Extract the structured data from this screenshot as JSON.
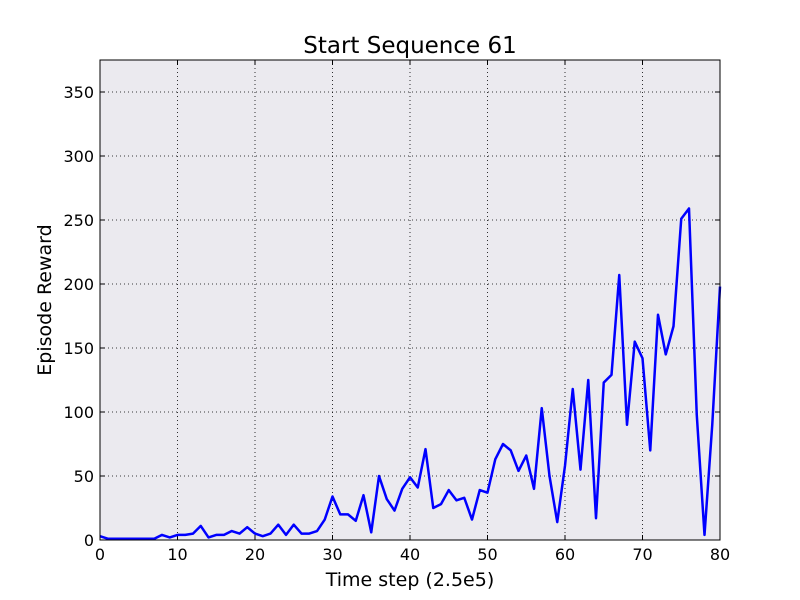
{
  "chart_data": {
    "type": "line",
    "title": "Start Sequence 61",
    "xlabel": "Time step (2.5e5)",
    "ylabel": "Episode Reward",
    "xlim": [
      0,
      80
    ],
    "ylim": [
      0,
      375
    ],
    "xticks": [
      0,
      10,
      20,
      30,
      40,
      50,
      60,
      70,
      80
    ],
    "yticks": [
      0,
      50,
      100,
      150,
      200,
      250,
      300,
      350
    ],
    "grid": true,
    "background_color": "#ebeaef",
    "series": [
      {
        "color": "#0000ff",
        "x": [
          0,
          1,
          2,
          3,
          4,
          5,
          6,
          7,
          8,
          9,
          10,
          11,
          12,
          13,
          14,
          15,
          16,
          17,
          18,
          19,
          20,
          21,
          22,
          23,
          24,
          25,
          26,
          27,
          28,
          29,
          30,
          31,
          32,
          33,
          34,
          35,
          36,
          37,
          38,
          39,
          40,
          41,
          42,
          43,
          44,
          45,
          46,
          47,
          48,
          49,
          50,
          51,
          52,
          53,
          54,
          55,
          56,
          57,
          58,
          59,
          60,
          61,
          62,
          63,
          64,
          65,
          66,
          67,
          68,
          69,
          70,
          71,
          72,
          73,
          74,
          75,
          76,
          77,
          78,
          79,
          80
        ],
        "values": [
          3,
          1,
          1,
          1,
          1,
          1,
          1,
          1,
          4,
          2,
          4,
          4,
          5,
          11,
          2,
          4,
          4,
          7,
          5,
          10,
          5,
          3,
          5,
          12,
          4,
          12,
          5,
          5,
          7,
          16,
          34,
          20,
          20,
          15,
          35,
          6,
          50,
          32,
          23,
          40,
          49,
          41,
          71,
          25,
          28,
          39,
          31,
          33,
          16,
          39,
          37,
          63,
          75,
          70,
          54,
          66,
          40,
          103,
          50,
          14,
          58,
          118,
          55,
          125,
          17,
          123,
          129,
          207,
          90,
          155,
          142,
          70,
          176,
          145,
          167,
          251,
          259,
          98,
          4,
          90,
          198
        ]
      }
    ]
  }
}
